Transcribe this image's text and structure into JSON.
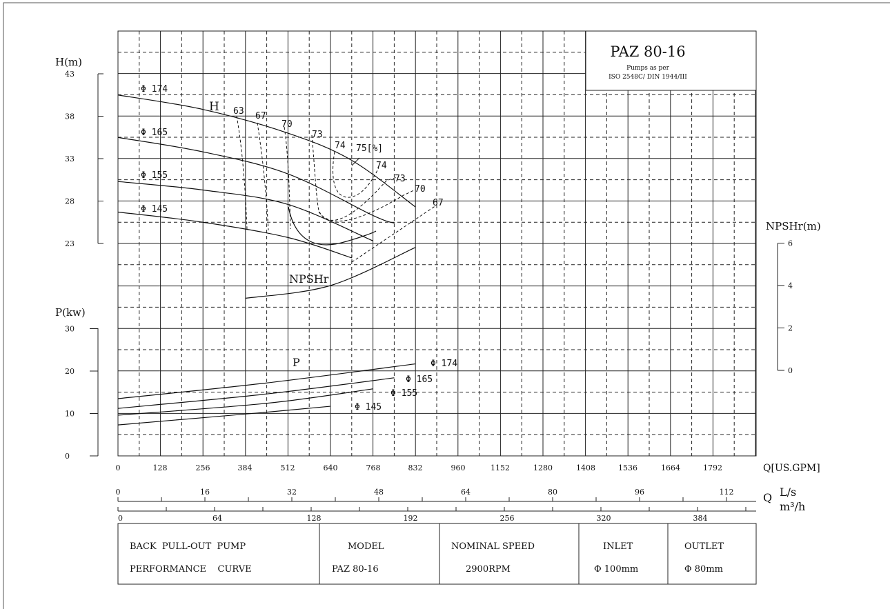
{
  "chart_data": {
    "type": "line",
    "title": "PAZ 80-16",
    "subtitle_lines": [
      "Pumps as per",
      "ISO 2548C/ DIN 1944/III"
    ],
    "x_axis": {
      "label": "Q[US.GPM]",
      "ticks": [
        "0",
        "128",
        "256",
        "384",
        "512",
        "640",
        "768",
        "832",
        "960",
        "1152",
        "1280",
        "1408",
        "1536",
        "1664",
        "1792"
      ],
      "range": [
        0,
        1920
      ]
    },
    "x_axis_ls": {
      "label_q": "Q",
      "label_unit": "L/s",
      "ticks": [
        "0",
        "16",
        "32",
        "48",
        "64",
        "80",
        "96",
        "112"
      ]
    },
    "x_axis_m3h": {
      "label_unit": "m³/h",
      "ticks": [
        "0",
        "64",
        "128",
        "192",
        "256",
        "320",
        "384"
      ]
    },
    "h_axis": {
      "label": "H(m)",
      "ticks": [
        "43",
        "38",
        "33",
        "28",
        "23"
      ],
      "range": [
        23,
        43
      ]
    },
    "p_axis": {
      "label": "P(kw)",
      "ticks": [
        "30",
        "20",
        "10",
        "0"
      ],
      "range": [
        0,
        30
      ]
    },
    "npsh_axis": {
      "label": "NPSHr(m)",
      "ticks": [
        "6",
        "4",
        "2",
        "0"
      ],
      "range": [
        0,
        6
      ]
    },
    "head_label": "H",
    "power_label": "P",
    "npsh_label": "NPSHr",
    "head_series": [
      {
        "name": "Φ 174",
        "x": [
          0,
          256,
          512,
          704,
          896
        ],
        "y": [
          40.5,
          38.8,
          36.0,
          32.8,
          27.3
        ]
      },
      {
        "name": "Φ 165",
        "x": [
          0,
          256,
          512,
          768,
          832
        ],
        "y": [
          35.5,
          33.8,
          31.2,
          26.3,
          25.4
        ]
      },
      {
        "name": "Φ 155",
        "x": [
          0,
          256,
          512,
          768
        ],
        "y": [
          30.3,
          29.3,
          27.6,
          23.3
        ]
      },
      {
        "name": "Φ 145",
        "x": [
          0,
          256,
          512,
          704
        ],
        "y": [
          26.7,
          25.5,
          23.7,
          21.3
        ]
      }
    ],
    "efficiency_labels": [
      "63",
      "67",
      "70",
      "73",
      "74",
      "75[%]",
      "74",
      "73",
      "70",
      "67"
    ],
    "power_series": [
      {
        "name": "Φ 174",
        "x": [
          0,
          448,
          896
        ],
        "y": [
          13.5,
          17.2,
          21.7
        ]
      },
      {
        "name": "Φ 165",
        "x": [
          0,
          448,
          832
        ],
        "y": [
          11.2,
          14.6,
          18.4
        ]
      },
      {
        "name": "Φ 155",
        "x": [
          0,
          448,
          768
        ],
        "y": [
          9.6,
          12.4,
          15.8
        ]
      },
      {
        "name": "Φ 145",
        "x": [
          0,
          448,
          640
        ],
        "y": [
          7.3,
          10.3,
          11.7
        ]
      }
    ],
    "npshr_series": {
      "name": "NPSHr",
      "x": [
        384,
        640,
        896
      ],
      "y": [
        3.4,
        4.0,
        5.8
      ]
    }
  },
  "info_table": {
    "title_line1": "BACK  PULL-OUT  PUMP",
    "title_line2": "PERFORMANCE    CURVE",
    "model_label": "MODEL",
    "model_value": "PAZ 80-16",
    "speed_label": "NOMINAL SPEED",
    "speed_value": "2900RPM",
    "inlet_label": "INLET",
    "inlet_value": "Φ 100mm",
    "outlet_label": "OUTLET",
    "outlet_value": "Φ 80mm"
  }
}
